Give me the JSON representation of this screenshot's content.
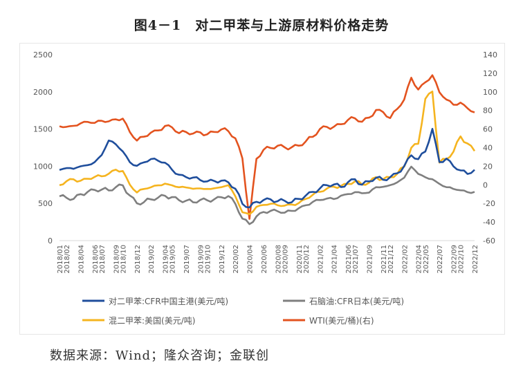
{
  "title": "图4－1　对二甲苯与上游原材料价格走势",
  "source": "数据来源：Wind；隆众咨询；金联创",
  "chart_data": {
    "type": "line",
    "title": "图4－1　对二甲苯与上游原材料价格走势",
    "x_ticks": [
      "2018/01",
      "2018/02",
      "2018/04",
      "2018/06",
      "2018/07",
      "2018/09",
      "2018/10",
      "2018/12",
      "2019/02",
      "2019/04",
      "2019/05",
      "2019/07",
      "2019/09",
      "2019/10",
      "2019/12",
      "2020/02",
      "2020/04",
      "2020/06",
      "2020/08",
      "2020/09",
      "2020/11",
      "2020/12",
      "2021/02",
      "2021/04",
      "2021/06",
      "2021/07",
      "2021/09",
      "2021/11",
      "2021/12",
      "2022/02",
      "2022/04",
      "2022/05",
      "2022/07",
      "2022/09",
      "2022/10",
      "2022/12"
    ],
    "x_range": [
      "2018/01",
      "2022/12"
    ],
    "y_left": {
      "ticks": [
        0,
        500,
        1000,
        1500,
        2000,
        2500
      ],
      "range": [
        0,
        2500
      ]
    },
    "y_right": {
      "ticks": [
        -60,
        -40,
        -20,
        0,
        20,
        40,
        60,
        80,
        100,
        120,
        140
      ],
      "range": [
        -60,
        140
      ]
    },
    "grid": false,
    "legend_position": "bottom",
    "months": [
      "2018/01",
      "2018/02",
      "2018/03",
      "2018/04",
      "2018/05",
      "2018/06",
      "2018/07",
      "2018/08",
      "2018/09",
      "2018/10",
      "2018/11",
      "2018/12",
      "2019/01",
      "2019/02",
      "2019/03",
      "2019/04",
      "2019/05",
      "2019/06",
      "2019/07",
      "2019/08",
      "2019/09",
      "2019/10",
      "2019/11",
      "2019/12",
      "2020/01",
      "2020/02",
      "2020/03",
      "2020/04",
      "2020/05",
      "2020/06",
      "2020/07",
      "2020/08",
      "2020/09",
      "2020/10",
      "2020/11",
      "2020/12",
      "2021/01",
      "2021/02",
      "2021/03",
      "2021/04",
      "2021/05",
      "2021/06",
      "2021/07",
      "2021/08",
      "2021/09",
      "2021/10",
      "2021/11",
      "2021/12",
      "2022/01",
      "2022/02",
      "2022/03",
      "2022/04",
      "2022/05",
      "2022/06",
      "2022/07",
      "2022/08",
      "2022/09",
      "2022/10",
      "2022/11",
      "2022/12"
    ],
    "series": [
      {
        "name": "对二甲苯:CFR中国主港(美元/吨)",
        "axis": "left",
        "color": "#1f4e9c",
        "values": [
          950,
          980,
          970,
          1000,
          1010,
          1050,
          1150,
          1350,
          1300,
          1200,
          1050,
          1000,
          1050,
          1100,
          1080,
          1050,
          950,
          880,
          850,
          850,
          820,
          800,
          800,
          800,
          780,
          700,
          500,
          450,
          520,
          540,
          550,
          530,
          540,
          520,
          560,
          600,
          650,
          700,
          750,
          760,
          720,
          780,
          820,
          750,
          800,
          850,
          820,
          850,
          900,
          1000,
          1150,
          1100,
          1200,
          1500,
          1050,
          1100,
          1000,
          950,
          900,
          950
        ]
      },
      {
        "name": "石脑油:CFR日本(美元/吨)",
        "axis": "left",
        "color": "#7f7f7f",
        "values": [
          600,
          580,
          560,
          620,
          650,
          680,
          690,
          680,
          720,
          740,
          600,
          500,
          520,
          560,
          580,
          600,
          580,
          540,
          540,
          520,
          550,
          540,
          550,
          580,
          600,
          500,
          300,
          220,
          320,
          380,
          400,
          400,
          380,
          400,
          430,
          470,
          520,
          550,
          570,
          560,
          600,
          620,
          650,
          640,
          650,
          720,
          720,
          740,
          780,
          850,
          1000,
          900,
          850,
          820,
          760,
          720,
          700,
          680,
          650,
          650
        ]
      },
      {
        "name": "混二甲苯:美国(美元/吨)",
        "axis": "left",
        "color": "#f5b41f",
        "values": [
          750,
          800,
          820,
          800,
          830,
          860,
          870,
          900,
          950,
          930,
          750,
          650,
          700,
          720,
          740,
          760,
          740,
          720,
          720,
          700,
          700,
          690,
          700,
          720,
          750,
          600,
          380,
          350,
          450,
          480,
          500,
          480,
          470,
          480,
          500,
          560,
          620,
          660,
          700,
          720,
          730,
          760,
          800,
          760,
          780,
          850,
          820,
          850,
          900,
          1000,
          1250,
          1300,
          1900,
          2000,
          1050,
          1100,
          1200,
          1400,
          1300,
          1200
        ]
      },
      {
        "name": "WTI(美元/桶)(右)",
        "axis": "right",
        "color": "#e3531f",
        "values": [
          63,
          62,
          63,
          66,
          68,
          67,
          69,
          68,
          70,
          71,
          57,
          48,
          52,
          56,
          58,
          63,
          62,
          56,
          57,
          55,
          56,
          54,
          57,
          60,
          58,
          50,
          28,
          -37,
          28,
          38,
          40,
          42,
          40,
          40,
          42,
          47,
          52,
          60,
          62,
          62,
          65,
          70,
          72,
          68,
          72,
          80,
          78,
          72,
          82,
          92,
          115,
          102,
          110,
          118,
          100,
          92,
          86,
          88,
          82,
          78
        ]
      }
    ]
  }
}
